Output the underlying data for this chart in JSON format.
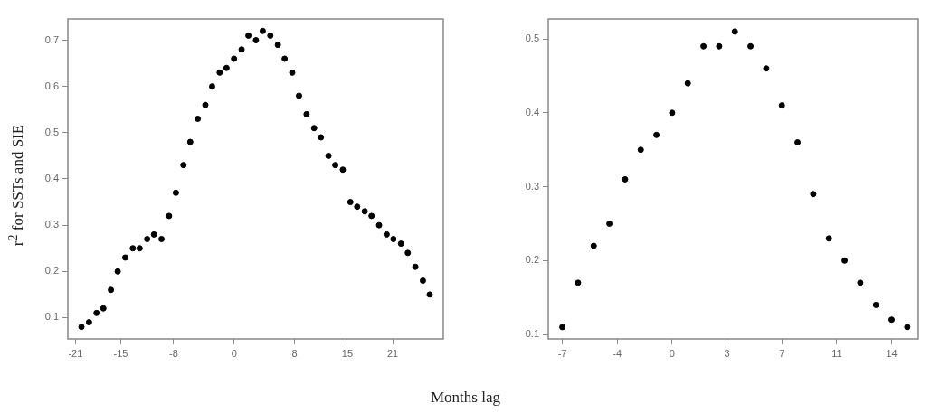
{
  "chart_data": [
    {
      "type": "scatter",
      "ylabel": "r$^{2}$ for SSTs and SIE",
      "xlabel": "Months lag",
      "marker": "circle",
      "x": [
        -20.2,
        -19.2,
        -18.2,
        -17.3,
        -16.3,
        -15.4,
        -14.4,
        -13.4,
        -12.5,
        -11.5,
        -10.6,
        -9.6,
        -8.6,
        -7.7,
        -6.7,
        -5.8,
        -4.8,
        -3.8,
        -2.9,
        -1.9,
        -1.0,
        0,
        1.0,
        1.9,
        2.9,
        3.8,
        4.8,
        5.8,
        6.7,
        7.7,
        8.6,
        9.6,
        10.6,
        11.5,
        12.5,
        13.4,
        14.4,
        15.4,
        16.3,
        17.3,
        18.2,
        19.2,
        20.2,
        21.1,
        22.1,
        23.0,
        24.0,
        25.0,
        25.9
      ],
      "series": [
        {
          "color": "#000000",
          "values": [
            0.08,
            0.09,
            0.11,
            0.12,
            0.16,
            0.2,
            0.23,
            0.25,
            0.25,
            0.27,
            0.28,
            0.27,
            0.32,
            0.37,
            0.43,
            0.48,
            0.53,
            0.56,
            0.6,
            0.63,
            0.64,
            0.66,
            0.68,
            0.71,
            0.7,
            0.72,
            0.71,
            0.69,
            0.66,
            0.63,
            0.58,
            0.54,
            0.51,
            0.49,
            0.45,
            0.43,
            0.42,
            0.35,
            0.34,
            0.33,
            0.32,
            0.3,
            0.28,
            0.27,
            0.26,
            0.24,
            0.21,
            0.18,
            0.15
          ]
        }
      ],
      "xlim": [
        -22.0,
        27.7
      ],
      "xticks": [
        -21,
        -15,
        -8,
        0,
        8,
        15,
        21
      ],
      "ylim": [
        0.054,
        0.746
      ],
      "yticks": [
        0.1,
        0.2,
        0.3,
        0.4,
        0.5,
        0.6,
        0.7
      ]
    },
    {
      "type": "scatter",
      "marker": "circle",
      "x": [
        -7,
        -6,
        -5,
        -4,
        -3,
        -2,
        -1,
        0,
        1,
        2,
        3,
        4,
        5,
        6,
        7,
        8,
        9,
        10,
        11,
        12,
        13,
        14,
        15
      ],
      "series": [
        {
          "color": "#000000",
          "values": [
            0.11,
            0.17,
            0.22,
            0.25,
            0.31,
            0.35,
            0.37,
            0.4,
            0.44,
            0.49,
            0.49,
            0.51,
            0.49,
            0.46,
            0.41,
            0.36,
            0.29,
            0.23,
            0.2,
            0.17,
            0.14,
            0.12,
            0.11
          ]
        }
      ],
      "xlim": [
        -7.9,
        15.7
      ],
      "xticks": [
        -7,
        {
          "value": -3.5,
          "label": "-4"
        },
        0,
        {
          "value": 3.5,
          "label": "3"
        },
        7,
        {
          "value": 10.5,
          "label": "11"
        },
        14
      ],
      "ylim": [
        0.094,
        0.527
      ],
      "yticks": [
        0.1,
        0.2,
        0.3,
        0.4,
        0.5
      ]
    }
  ]
}
